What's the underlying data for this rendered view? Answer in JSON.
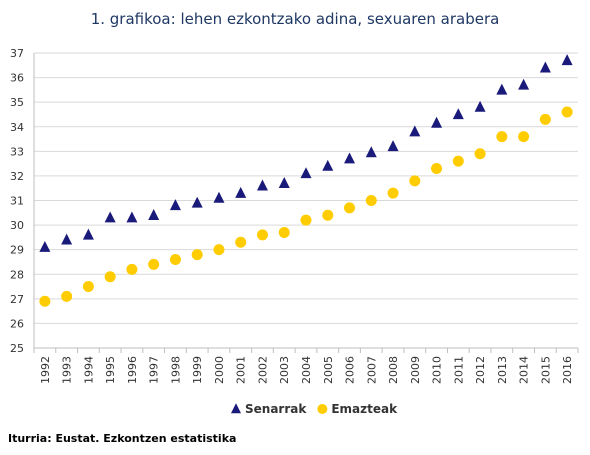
{
  "chart_data": {
    "type": "scatter",
    "title": "1. grafikoa: lehen ezkontzako adina, sexuaren arabera",
    "source": "Iturria: Eustat. Ezkontzen estatistika",
    "xlabel": "",
    "ylabel": "",
    "categories": [
      "1992",
      "1993",
      "1994",
      "1995",
      "1996",
      "1997",
      "1998",
      "1999",
      "2000",
      "2001",
      "2002",
      "2003",
      "2004",
      "2005",
      "2006",
      "2007",
      "2008",
      "2009",
      "2010",
      "2011",
      "2012",
      "2013",
      "2014",
      "2015",
      "2016"
    ],
    "ylim": [
      25,
      37
    ],
    "yticks": [
      "25",
      "26",
      "27",
      "28",
      "29",
      "30",
      "31",
      "32",
      "33",
      "34",
      "35",
      "36",
      "37"
    ],
    "grid": true,
    "legend_position": "bottom",
    "series": [
      {
        "name": "Senarrak",
        "marker": "triangle",
        "color": "#1a1a7a",
        "values": [
          29.1,
          29.4,
          29.6,
          30.3,
          30.3,
          30.4,
          30.8,
          30.9,
          31.1,
          31.3,
          31.6,
          31.7,
          32.1,
          32.4,
          32.7,
          32.95,
          33.2,
          33.8,
          34.15,
          34.5,
          34.8,
          35.5,
          35.7,
          36.4,
          36.7
        ]
      },
      {
        "name": "Emazteak",
        "marker": "circle",
        "color": "#ffcc00",
        "values": [
          26.9,
          27.1,
          27.5,
          27.9,
          28.2,
          28.4,
          28.6,
          28.8,
          29.0,
          29.3,
          29.6,
          29.7,
          30.2,
          30.4,
          30.7,
          31.0,
          31.3,
          31.8,
          32.3,
          32.6,
          32.9,
          33.6,
          33.6,
          34.3,
          34.6
        ]
      }
    ]
  }
}
